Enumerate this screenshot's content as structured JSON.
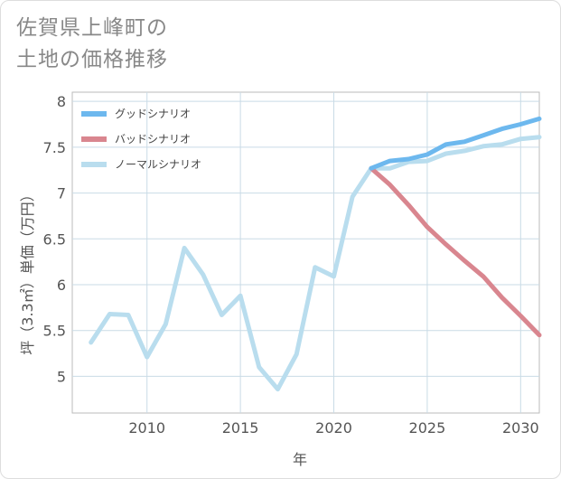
{
  "chart_data": {
    "type": "line",
    "title_lines": [
      "佐賀県上峰町の",
      "土地の価格推移"
    ],
    "xlabel": "年",
    "ylabel": "坪（3.3㎡）単価（万円）",
    "xlim": [
      2006,
      2031
    ],
    "ylim": [
      4.6,
      8.1
    ],
    "xticks": [
      2010,
      2015,
      2020,
      2025,
      2030
    ],
    "yticks": [
      5,
      5.5,
      6,
      6.5,
      7,
      7.5,
      8
    ],
    "ytick_labels": [
      "5",
      "5.5",
      "6",
      "6.5",
      "7",
      "7.5",
      "8"
    ],
    "legend_position": "top-left",
    "series": [
      {
        "name": "グッドシナリオ",
        "color": "#6db8ee",
        "x": [
          2022,
          2023,
          2024,
          2025,
          2026,
          2027,
          2028,
          2029,
          2030,
          2031
        ],
        "y": [
          7.27,
          7.35,
          7.37,
          7.42,
          7.53,
          7.56,
          7.63,
          7.7,
          7.75,
          7.81
        ]
      },
      {
        "name": "バッドシナリオ",
        "color": "#d9868f",
        "x": [
          2022,
          2023,
          2024,
          2025,
          2026,
          2027,
          2028,
          2029,
          2030,
          2031
        ],
        "y": [
          7.27,
          7.09,
          6.87,
          6.63,
          6.44,
          6.26,
          6.09,
          5.86,
          5.66,
          5.45
        ]
      },
      {
        "name": "ノーマルシナリオ",
        "color": "#b9ddee",
        "x": [
          2007,
          2008,
          2009,
          2010,
          2011,
          2012,
          2013,
          2014,
          2015,
          2016,
          2017,
          2018,
          2019,
          2020,
          2021,
          2022,
          2023,
          2024,
          2025,
          2026,
          2027,
          2028,
          2029,
          2030,
          2031
        ],
        "y": [
          5.37,
          5.68,
          5.67,
          5.21,
          5.57,
          6.4,
          6.11,
          5.67,
          5.88,
          5.1,
          4.86,
          5.24,
          6.19,
          6.09,
          6.96,
          7.27,
          7.27,
          7.34,
          7.35,
          7.43,
          7.46,
          7.51,
          7.53,
          7.59,
          7.61
        ]
      }
    ]
  }
}
